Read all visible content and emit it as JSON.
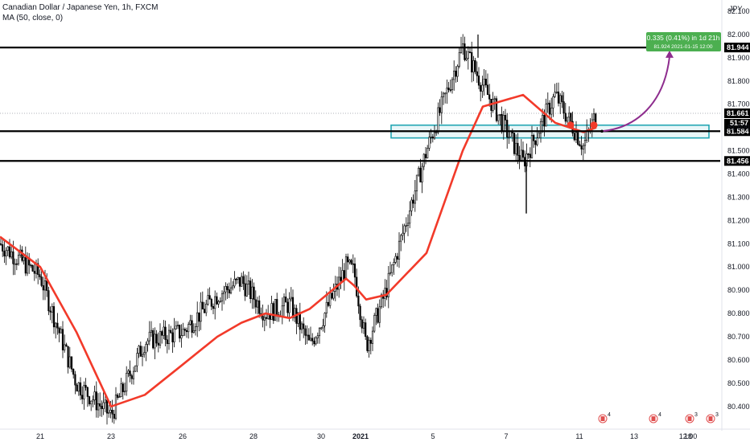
{
  "header": {
    "title": "Canadian Dollar / Japanese Yen, 1h, FXCM",
    "indicator": "MA (50, close, 0)",
    "currency": "JPY"
  },
  "colors": {
    "background": "#ffffff",
    "candle": "#000000",
    "ma_line": "#f23a2a",
    "zone_border": "#22a6b3",
    "zone_fill": "#e9f6f8",
    "level_line": "#000000",
    "label_bg": "#000000",
    "label_text": "#ffffff",
    "projection": "#8e2d8e",
    "target_box": "#4caf50",
    "marker": "#f23a2a"
  },
  "chart_data": {
    "type": "candlestick",
    "symbol": "CADJPY",
    "timeframe": "1h",
    "ylim": [
      80.33,
      82.1
    ],
    "y_ticks": [
      80.4,
      80.5,
      80.6,
      80.7,
      80.8,
      80.9,
      81.0,
      81.1,
      81.2,
      81.3,
      81.4,
      81.5,
      81.6,
      81.7,
      81.8,
      81.9,
      82.0,
      82.1
    ],
    "x_tick_labels": [
      "21",
      "23",
      "26",
      "28",
      "30",
      "2021",
      "5",
      "7",
      "11",
      "13",
      "12:00",
      "18"
    ],
    "price_series": {
      "name": "close",
      "points": [
        [
          "20",
          81.1
        ],
        [
          "21",
          80.96
        ],
        [
          "22",
          80.5
        ],
        [
          "23",
          80.36
        ],
        [
          "24",
          80.68
        ],
        [
          "26",
          80.72
        ],
        [
          "27",
          80.88
        ],
        [
          "28",
          80.94
        ],
        [
          "29",
          80.8
        ],
        [
          "30",
          80.84
        ],
        [
          "31",
          80.66
        ],
        [
          "2021",
          81.0
        ],
        [
          "4",
          80.98
        ],
        [
          "5",
          80.66
        ],
        [
          "6",
          80.9
        ],
        [
          "7",
          81.5
        ],
        [
          "8",
          81.95
        ],
        [
          "9",
          81.78
        ],
        [
          "11",
          81.45
        ],
        [
          "12",
          81.74
        ],
        [
          "13",
          81.52
        ],
        [
          "13b",
          81.661
        ]
      ]
    },
    "ma_series": {
      "name": "MA (50, close, 0)",
      "points": [
        [
          "20",
          81.13
        ],
        [
          "21",
          81.0
        ],
        [
          "22",
          80.72
        ],
        [
          "23",
          80.4
        ],
        [
          "24",
          80.45
        ],
        [
          "26",
          80.58
        ],
        [
          "27",
          80.7
        ],
        [
          "28",
          80.76
        ],
        [
          "29",
          80.8
        ],
        [
          "30",
          80.78
        ],
        [
          "31",
          80.82
        ],
        [
          "2021",
          80.95
        ],
        [
          "4",
          80.92
        ],
        [
          "5",
          80.86
        ],
        [
          "6",
          80.88
        ],
        [
          "7",
          81.06
        ],
        [
          "8",
          81.5
        ],
        [
          "9",
          81.69
        ],
        [
          "11",
          81.74
        ],
        [
          "12",
          81.62
        ],
        [
          "13",
          81.58
        ],
        [
          "13b",
          81.6
        ]
      ]
    },
    "horizontal_levels": [
      {
        "price": 81.944,
        "label": "81.944"
      },
      {
        "price": 81.584,
        "label": "81.584"
      },
      {
        "price": 81.456,
        "label": "81.456"
      }
    ],
    "current_price": {
      "price": 81.661,
      "label": "81.661"
    },
    "countdown": {
      "label": "51:57"
    },
    "zone": {
      "from": 81.555,
      "to": 81.61
    },
    "target": {
      "price": 81.924,
      "date": "2021-01-15",
      "time": "12:00",
      "line1": "0.335 (0.41%) in 1d 21h",
      "line2_prefix": "81.924"
    },
    "event_icons": [
      "4",
      "4",
      "3",
      "3"
    ]
  }
}
